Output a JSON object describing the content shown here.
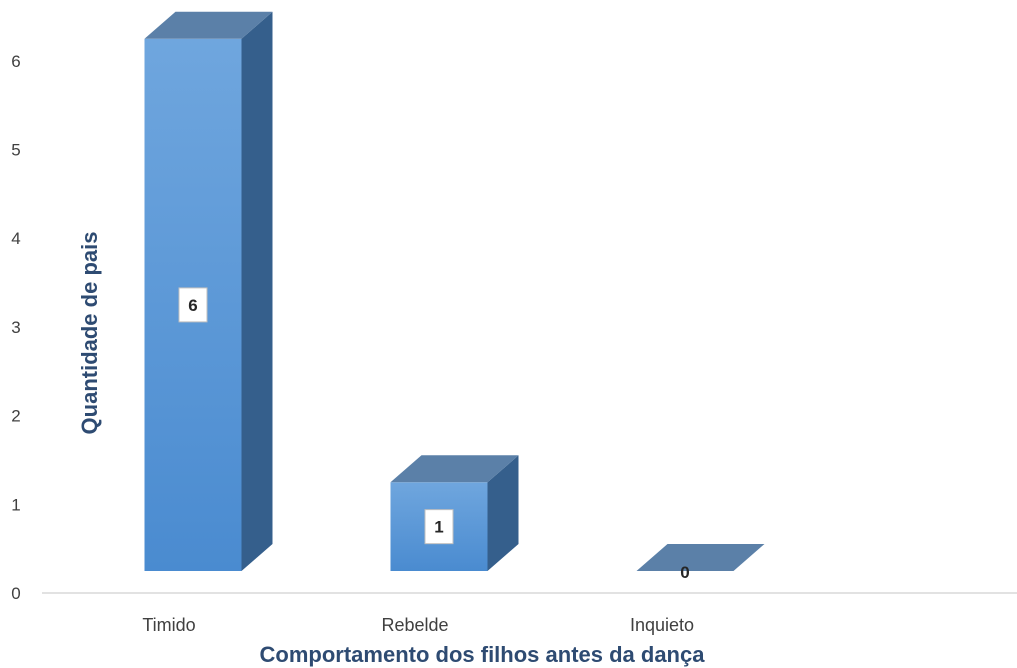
{
  "chart_data": {
    "type": "bar",
    "categories": [
      "Timido",
      "Rebelde",
      "Inquieto"
    ],
    "values": [
      6,
      1,
      0
    ],
    "data_labels": [
      "6",
      "1",
      "0"
    ],
    "xlabel": "Comportamento dos filhos antes da dança",
    "ylabel": "Quantidade de pais",
    "y_ticks": [
      "0",
      "1",
      "2",
      "3",
      "4",
      "5",
      "6"
    ],
    "ylim": [
      0,
      6
    ],
    "grid": false,
    "legend": "none",
    "style": "3d-column",
    "colors": {
      "bar_front_top": "#6fa6de",
      "bar_front_bottom": "#4a8bd0",
      "bar_side": "#355f8c",
      "bar_top": "#5b80a8",
      "axis_title": "#2e4b72",
      "axis_line": "#d9d9d9",
      "tick_text": "#404040"
    }
  }
}
